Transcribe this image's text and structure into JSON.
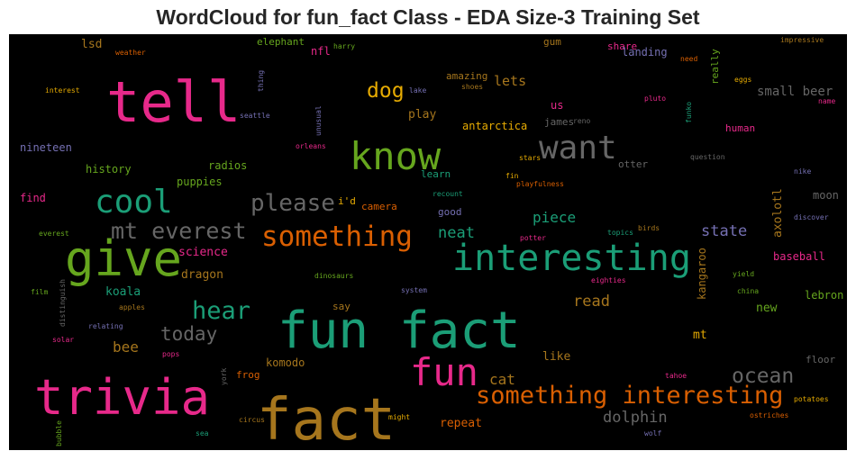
{
  "chart_data": {
    "type": "wordcloud",
    "title": "WordCloud for fun_fact Class - EDA Size-3 Training Set",
    "background": "#000000",
    "palette": {
      "pink": "#e7298a",
      "teal": "#1b9e77",
      "green": "#66a61e",
      "orange": "#d95f02",
      "gold": "#a6761d",
      "yellow": "#e6ab02",
      "grey": "#666666",
      "purple": "#7570b3"
    },
    "words": [
      {
        "text": "fun fact",
        "color": "teal"
      },
      {
        "text": "fact",
        "color": "gold"
      },
      {
        "text": "trivia",
        "color": "pink"
      },
      {
        "text": "tell",
        "color": "pink"
      },
      {
        "text": "give",
        "color": "green"
      },
      {
        "text": "interesting",
        "color": "teal"
      },
      {
        "text": "know",
        "color": "green"
      },
      {
        "text": "want",
        "color": "grey"
      },
      {
        "text": "fun",
        "color": "pink"
      },
      {
        "text": "something interesting",
        "color": "orange"
      },
      {
        "text": "cool",
        "color": "teal"
      },
      {
        "text": "something",
        "color": "orange"
      },
      {
        "text": "please",
        "color": "grey"
      },
      {
        "text": "mt everest",
        "color": "grey"
      },
      {
        "text": "hear",
        "color": "teal"
      },
      {
        "text": "ocean",
        "color": "grey"
      },
      {
        "text": "dog",
        "color": "yellow"
      },
      {
        "text": "today",
        "color": "grey"
      },
      {
        "text": "piece",
        "color": "teal"
      },
      {
        "text": "neat",
        "color": "teal"
      },
      {
        "text": "state",
        "color": "purple"
      },
      {
        "text": "dolphin",
        "color": "grey"
      },
      {
        "text": "read",
        "color": "gold"
      },
      {
        "text": "cat",
        "color": "gold"
      },
      {
        "text": "lets",
        "color": "gold"
      },
      {
        "text": "small beer",
        "color": "grey"
      },
      {
        "text": "axolotl",
        "color": "gold"
      },
      {
        "text": "kangaroo",
        "color": "gold"
      },
      {
        "text": "bee",
        "color": "gold"
      },
      {
        "text": "koala",
        "color": "teal"
      },
      {
        "text": "dragon",
        "color": "gold"
      },
      {
        "text": "science",
        "color": "pink"
      },
      {
        "text": "play",
        "color": "gold"
      },
      {
        "text": "antarctica",
        "color": "yellow"
      },
      {
        "text": "repeat",
        "color": "orange"
      },
      {
        "text": "komodo",
        "color": "gold"
      },
      {
        "text": "like",
        "color": "gold"
      },
      {
        "text": "new",
        "color": "green"
      },
      {
        "text": "mt",
        "color": "yellow"
      },
      {
        "text": "lsd",
        "color": "gold"
      },
      {
        "text": "nineteen",
        "color": "purple"
      },
      {
        "text": "history",
        "color": "green"
      },
      {
        "text": "radios",
        "color": "green"
      },
      {
        "text": "puppies",
        "color": "green"
      },
      {
        "text": "find",
        "color": "pink"
      },
      {
        "text": "camera",
        "color": "orange"
      },
      {
        "text": "good",
        "color": "purple"
      },
      {
        "text": "i'd",
        "color": "yellow"
      },
      {
        "text": "james",
        "color": "grey"
      },
      {
        "text": "us",
        "color": "pink"
      },
      {
        "text": "amazing",
        "color": "gold"
      },
      {
        "text": "gum",
        "color": "gold"
      },
      {
        "text": "share",
        "color": "pink"
      },
      {
        "text": "landing",
        "color": "purple"
      },
      {
        "text": "really",
        "color": "green"
      },
      {
        "text": "human",
        "color": "pink"
      },
      {
        "text": "moon",
        "color": "grey"
      },
      {
        "text": "baseball",
        "color": "pink"
      },
      {
        "text": "lebron",
        "color": "green"
      },
      {
        "text": "floor",
        "color": "grey"
      },
      {
        "text": "elephant",
        "color": "green"
      },
      {
        "text": "nfl",
        "color": "pink"
      },
      {
        "text": "frog",
        "color": "orange"
      },
      {
        "text": "say",
        "color": "gold"
      },
      {
        "text": "learn",
        "color": "teal"
      },
      {
        "text": "otter",
        "color": "grey"
      },
      {
        "text": "impressive",
        "color": "gold"
      },
      {
        "text": "harry",
        "color": "green"
      },
      {
        "text": "weather",
        "color": "orange"
      },
      {
        "text": "interest",
        "color": "yellow"
      },
      {
        "text": "thing",
        "color": "purple"
      },
      {
        "text": "seattle",
        "color": "purple"
      },
      {
        "text": "unusual",
        "color": "purple"
      },
      {
        "text": "orleans",
        "color": "pink"
      },
      {
        "text": "lake",
        "color": "purple"
      },
      {
        "text": "shoes",
        "color": "gold"
      },
      {
        "text": "reno",
        "color": "grey"
      },
      {
        "text": "need",
        "color": "orange"
      },
      {
        "text": "eggs",
        "color": "yellow"
      },
      {
        "text": "name",
        "color": "pink"
      },
      {
        "text": "pluto",
        "color": "pink"
      },
      {
        "text": "funko",
        "color": "teal"
      },
      {
        "text": "question",
        "color": "grey"
      },
      {
        "text": "nike",
        "color": "purple"
      },
      {
        "text": "discover",
        "color": "purple"
      },
      {
        "text": "stars",
        "color": "yellow"
      },
      {
        "text": "fin",
        "color": "yellow"
      },
      {
        "text": "playfulness",
        "color": "orange"
      },
      {
        "text": "recount",
        "color": "teal"
      },
      {
        "text": "topics",
        "color": "teal"
      },
      {
        "text": "birds",
        "color": "gold"
      },
      {
        "text": "potter",
        "color": "pink"
      },
      {
        "text": "eighties",
        "color": "pink"
      },
      {
        "text": "yield",
        "color": "green"
      },
      {
        "text": "china",
        "color": "green"
      },
      {
        "text": "everest",
        "color": "green"
      },
      {
        "text": "film",
        "color": "green"
      },
      {
        "text": "distinguish",
        "color": "grey"
      },
      {
        "text": "dinosaurs",
        "color": "green"
      },
      {
        "text": "system",
        "color": "purple"
      },
      {
        "text": "apples",
        "color": "gold"
      },
      {
        "text": "relating",
        "color": "purple"
      },
      {
        "text": "solar",
        "color": "pink"
      },
      {
        "text": "pops",
        "color": "pink"
      },
      {
        "text": "york",
        "color": "grey"
      },
      {
        "text": "tahoe",
        "color": "pink"
      },
      {
        "text": "potatoes",
        "color": "yellow"
      },
      {
        "text": "ostriches",
        "color": "orange"
      },
      {
        "text": "circus",
        "color": "gold"
      },
      {
        "text": "might",
        "color": "yellow"
      },
      {
        "text": "sea",
        "color": "teal"
      },
      {
        "text": "bubble",
        "color": "green"
      },
      {
        "text": "wolf",
        "color": "purple"
      }
    ]
  }
}
